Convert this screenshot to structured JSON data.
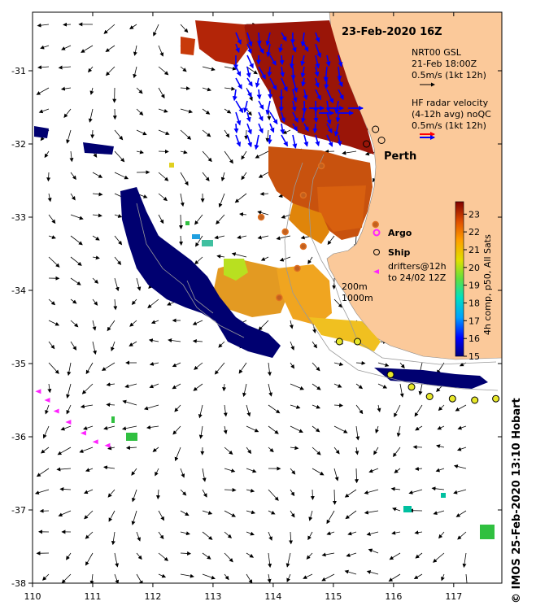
{
  "title": "23-Feb-2020 16Z",
  "axes": {
    "x_ticks": [
      "110",
      "111",
      "112",
      "113",
      "114",
      "115",
      "116",
      "117"
    ],
    "x_values": [
      110,
      111,
      112,
      113,
      114,
      115,
      116,
      117
    ],
    "y_ticks": [
      "-31",
      "-32",
      "-33",
      "-34",
      "-35",
      "-36",
      "-37",
      "-38"
    ],
    "y_values": [
      -31,
      -32,
      -33,
      -34,
      -35,
      -36,
      -37,
      -38
    ],
    "lon_range": [
      110,
      117.8
    ],
    "lat_range": [
      -30.2,
      -38
    ]
  },
  "legend": {
    "gsl_line1": "NRT00 GSL",
    "gsl_line2": "21-Feb 18:00Z",
    "gsl_line3": "0.5m/s (1kt 12h)",
    "hf_line1": "HF radar velocity",
    "hf_line2": "(4-12h avg) noQC",
    "hf_line3": "0.5m/s (1kt 12h)",
    "argo_label": "Argo",
    "ship_label": "Ship",
    "drifter_line1": "drifters@12h",
    "drifter_line2": "to 24/02 12Z",
    "isobath_line1": "200m",
    "isobath_line2": "1000m"
  },
  "city_label": "Perth",
  "colorbar": {
    "title": "4h comp, p50, All Sats",
    "ticks": [
      "23",
      "22",
      "21",
      "20",
      "19",
      "18",
      "17",
      "16",
      "15"
    ],
    "min": 15,
    "max": 23.7
  },
  "credit": "© IMOS 25-Feb-2020 13:10 Hobart",
  "colors": {
    "land": "#fbc99a",
    "argo": "#ff22ff",
    "hf_red": "#ff0000",
    "hf_blue": "#0000ff",
    "drifter": "#ff22ff",
    "ship_fill": "#e7e72a"
  },
  "chart_data": {
    "type": "heatmap",
    "variable": "SST",
    "argo_floats": [
      [
        114.8,
        -32.3
      ],
      [
        114.5,
        -32.7
      ],
      [
        114.2,
        -33.2
      ],
      [
        114.5,
        -33.4
      ],
      [
        114.4,
        -33.7
      ],
      [
        114.1,
        -34.1
      ],
      [
        113.8,
        -33.0
      ],
      [
        115.7,
        -33.1
      ]
    ],
    "ship_track": [
      [
        115.7,
        -31.8
      ],
      [
        115.8,
        -31.95
      ],
      [
        115.55,
        -32.0
      ],
      [
        115.95,
        -35.15
      ],
      [
        116.3,
        -35.32
      ],
      [
        116.6,
        -35.45
      ],
      [
        116.98,
        -35.48
      ],
      [
        117.35,
        -35.5
      ],
      [
        117.7,
        -35.48
      ],
      [
        115.1,
        -34.7
      ],
      [
        115.4,
        -34.7
      ]
    ],
    "drifters": [
      [
        110.1,
        -35.38
      ],
      [
        110.25,
        -35.5
      ],
      [
        110.4,
        -35.65
      ],
      [
        110.6,
        -35.8
      ],
      [
        110.85,
        -35.95
      ],
      [
        111.05,
        -36.07
      ],
      [
        111.25,
        -36.12
      ]
    ]
  }
}
